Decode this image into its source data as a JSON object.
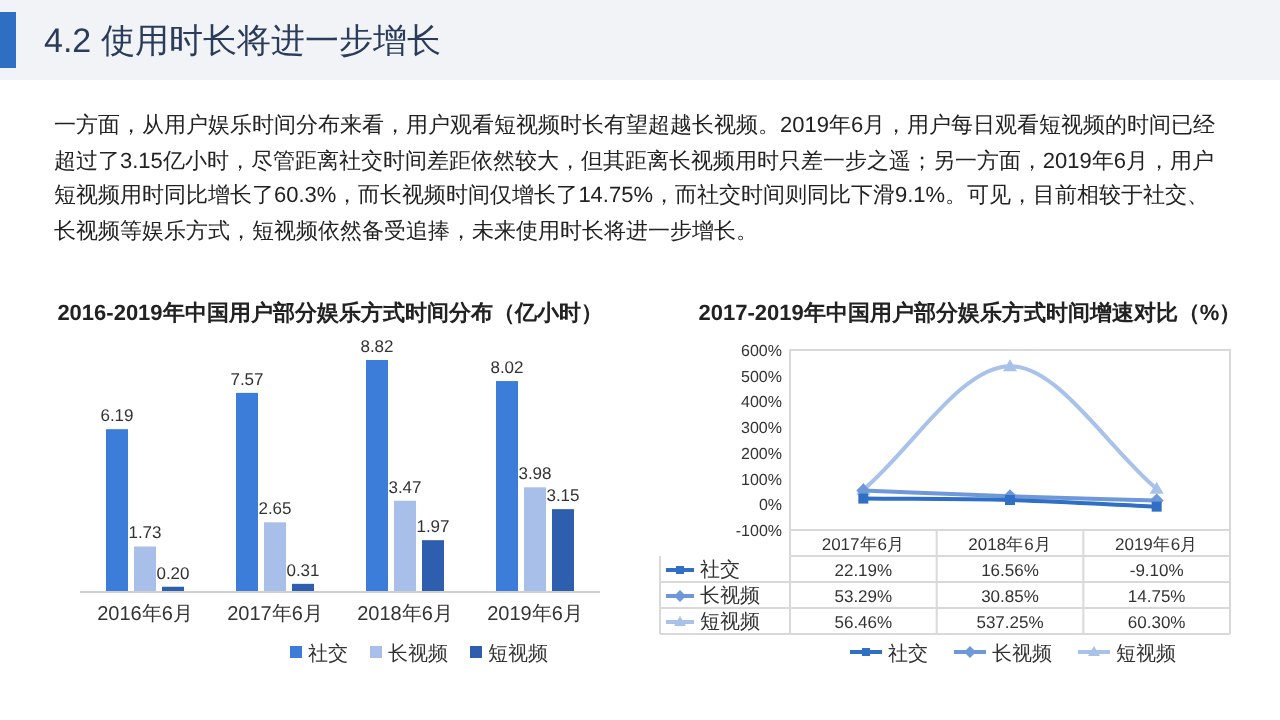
{
  "chart_data": [
    {
      "type": "bar",
      "title": "2016-2019年中国用户部分娱乐方式时间分布（亿小时）",
      "annotations": [
        "4.2 使用时长将进一步增长",
        "一方面，从用户娱乐时间分布来看，用户观看短视频时长有望超越长视频。2019年6月，用户每日观看短视频的时间已经超过了3.15亿小时，尽管距离社交时间差距依然较大，但其距离长视频用时只差一步之遥；另一方面，2019年6月，用户短视频用时同比增长了60.3%，而长视频时间仅增长了14.75%，而社交时间则同比下滑9.1%。可见，目前相较于社交、长视频等娱乐方式，短视频依然备受追捧，未来使用时长将进一步增长。"
      ],
      "categories": [
        "2016年6月",
        "2017年6月",
        "2018年6月",
        "2019年6月"
      ],
      "series": [
        {
          "name": "社交",
          "color": "#3b7dd8",
          "values": [
            6.19,
            7.57,
            8.82,
            8.02
          ],
          "value_labels": [
            "6.19",
            "7.57",
            "8.82",
            "8.02"
          ]
        },
        {
          "name": "长视频",
          "color": "#a8bfe9",
          "values": [
            1.73,
            2.65,
            3.47,
            3.98
          ],
          "value_labels": [
            "1.73",
            "2.65",
            "3.47",
            "3.98"
          ]
        },
        {
          "name": "短视频",
          "color": "#2e5fae",
          "values": [
            0.2,
            0.31,
            1.97,
            3.15
          ],
          "value_labels": [
            "0.20",
            "0.31",
            "1.97",
            "3.15"
          ]
        }
      ],
      "legend": "bottom"
    },
    {
      "type": "line",
      "title": "2017-2019年中国用户部分娱乐方式时间增速对比（%）",
      "categories": [
        "2017年6月",
        "2018年6月",
        "2019年6月"
      ],
      "ylim": [
        -100,
        600
      ],
      "yticks": [
        {
          "value": -100,
          "label": "-100%"
        },
        {
          "value": 0,
          "label": "0%"
        },
        {
          "value": 100,
          "label": "100%"
        },
        {
          "value": 200,
          "label": "200%"
        },
        {
          "value": 300,
          "label": "300%"
        },
        {
          "value": 400,
          "label": "400%"
        },
        {
          "value": 500,
          "label": "500%"
        },
        {
          "value": 600,
          "label": "600%"
        }
      ],
      "series": [
        {
          "name": "社交",
          "color": "#2f6fc4",
          "marker": "square",
          "values": [
            22.19,
            16.56,
            -9.1
          ],
          "value_labels": [
            "22.19%",
            "16.56%",
            "-9.10%"
          ]
        },
        {
          "name": "长视频",
          "color": "#6f98d8",
          "marker": "diamond",
          "values": [
            53.29,
            30.85,
            14.75
          ],
          "value_labels": [
            "53.29%",
            "30.85%",
            "14.75%"
          ]
        },
        {
          "name": "短视频",
          "color": "#a9c2ea",
          "marker": "triangle",
          "values": [
            56.46,
            537.25,
            60.3
          ],
          "value_labels": [
            "56.46%",
            "537.25%",
            "60.30%"
          ]
        }
      ],
      "legend": "bottom"
    }
  ]
}
